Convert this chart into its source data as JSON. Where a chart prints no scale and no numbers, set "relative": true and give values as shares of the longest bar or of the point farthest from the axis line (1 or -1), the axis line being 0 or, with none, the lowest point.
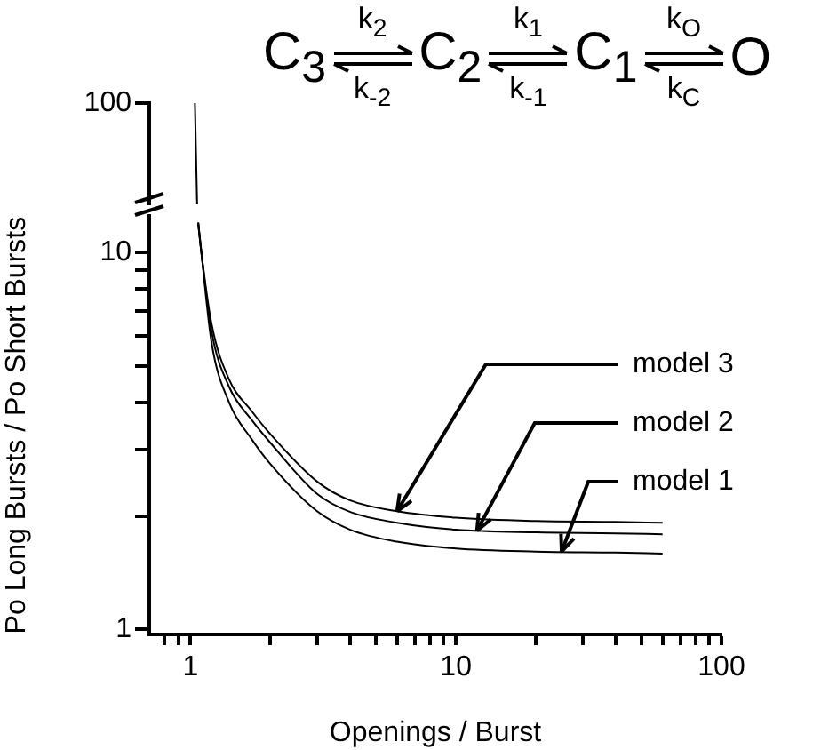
{
  "chart_data": [
    {
      "type": "line",
      "relative": true,
      "log": "x",
      "tick_labels": "y",
      "xlim": [
        0.72,
        100
      ],
      "x": [
        1.04,
        1.06
      ],
      "series": [
        {
          "color": "#000000",
          "values": [
            1,
            0
          ]
        }
      ],
      "annotations": [
        "100"
      ]
    },
    {
      "type": "line",
      "log": "xy",
      "xlabel": "Openings / Burst",
      "ylabel": "Po Long Bursts / Po Short Bursts",
      "xlim": [
        0.72,
        100
      ],
      "ylim": [
        0.97,
        12.5
      ],
      "xticks": [
        {
          "value": 0.8,
          "label": null
        },
        {
          "value": 0.9,
          "label": null
        },
        1,
        {
          "value": 2,
          "label": null
        },
        {
          "value": 3,
          "label": null
        },
        {
          "value": 4,
          "label": null
        },
        {
          "value": 5,
          "label": null
        },
        {
          "value": 6,
          "label": null
        },
        {
          "value": 7,
          "label": null
        },
        {
          "value": 8,
          "label": null
        },
        {
          "value": 9,
          "label": null
        },
        10,
        {
          "value": 20,
          "label": null
        },
        {
          "value": 30,
          "label": null
        },
        {
          "value": 40,
          "label": null
        },
        {
          "value": 50,
          "label": null
        },
        {
          "value": 60,
          "label": null
        },
        {
          "value": 70,
          "label": null
        },
        {
          "value": 80,
          "label": null
        },
        {
          "value": 90,
          "label": null
        },
        100
      ],
      "yticks": [
        1,
        {
          "value": 2,
          "label": null
        },
        {
          "value": 3,
          "label": null
        },
        {
          "value": 4,
          "label": null
        },
        {
          "value": 5,
          "label": null
        },
        {
          "value": 6,
          "label": null
        },
        {
          "value": 7,
          "label": null
        },
        {
          "value": 8,
          "label": null
        },
        {
          "value": 9,
          "label": null
        },
        10
      ],
      "x": [
        1.07,
        1.1,
        1.2,
        1.4,
        1.7,
        2,
        3,
        4,
        6,
        10,
        20,
        40,
        60
      ],
      "series": [
        {
          "color": "#000000",
          "values": [
            12,
            10,
            6.5,
            4.6,
            3.8,
            3.3,
            2.47,
            2.2,
            2.06,
            1.98,
            1.94,
            1.93,
            1.92
          ]
        },
        {
          "color": "#000000",
          "values": [
            12,
            10,
            6.2,
            4.4,
            3.6,
            3.13,
            2.29,
            2.05,
            1.92,
            1.84,
            1.81,
            1.8,
            1.79
          ]
        },
        {
          "color": "#000000",
          "values": [
            12,
            10,
            5.8,
            4.0,
            3.2,
            2.75,
            2.06,
            1.84,
            1.71,
            1.64,
            1.61,
            1.6,
            1.59
          ]
        }
      ],
      "annotations": [
        "C$_{3}$",
        "k$_{2}$",
        "k$_{-2}$",
        "C$_{2}$",
        "k$_{1}$",
        "k$_{-1}$",
        "C$_{1}$",
        "k$_{O}$",
        "k$_{C}$",
        "O",
        {
          "text": "model 3",
          "x": 6,
          "y": 2.06
        },
        {
          "text": "model 2",
          "x": 12,
          "y": 1.83
        },
        {
          "text": "model 1",
          "x": 25,
          "y": 1.61
        }
      ]
    }
  ]
}
